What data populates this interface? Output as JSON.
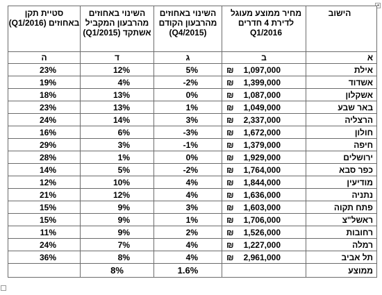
{
  "headers": {
    "rate_q1_2016": "סטיית תקן באחוזים (Q1/2016)",
    "change_yoy": "השינוי באחוזים מהרבעון המקביל אשתקד (Q1/2015)",
    "change_qoq": "השינוי באחוזים מהרבעון הקודם (Q4/2015)",
    "price": "מחיר ממוצע מעוגל לדירת 4 חדרים Q1/2016",
    "city": "הישוב"
  },
  "letters": {
    "rate": "ה",
    "yoy": "ד",
    "qoq": "ג",
    "price": "ב",
    "city": "א"
  },
  "currency_symbol": "₪",
  "rows": [
    {
      "city": "אילת",
      "price": "1,097,000",
      "qoq": "5%",
      "yoy": "12%",
      "rate": "23%"
    },
    {
      "city": "אשדוד",
      "price": "1,399,000",
      "qoq": "-2%",
      "yoy": "4%",
      "rate": "19%"
    },
    {
      "city": "אשקלון",
      "price": "1,087,000",
      "qoq": "0%",
      "yoy": "13%",
      "rate": "18%"
    },
    {
      "city": "באר שבע",
      "price": "1,049,000",
      "qoq": "1%",
      "yoy": "13%",
      "rate": "23%"
    },
    {
      "city": "הרצליה",
      "price": "2,337,000",
      "qoq": "3%",
      "yoy": "14%",
      "rate": "24%"
    },
    {
      "city": "חולון",
      "price": "1,672,000",
      "qoq": "-3%",
      "yoy": "6%",
      "rate": "16%"
    },
    {
      "city": "חיפה",
      "price": "1,379,000",
      "qoq": "-1%",
      "yoy": "3%",
      "rate": "29%"
    },
    {
      "city": "ירושלים",
      "price": "1,929,000",
      "qoq": "0%",
      "yoy": "1%",
      "rate": "28%"
    },
    {
      "city": "כפר סבא",
      "price": "1,764,000",
      "qoq": "-2%",
      "yoy": "5%",
      "rate": "14%"
    },
    {
      "city": "מודיעין",
      "price": "1,844,000",
      "qoq": "4%",
      "yoy": "10%",
      "rate": "12%"
    },
    {
      "city": "נתניה",
      "price": "1,636,000",
      "qoq": "4%",
      "yoy": "12%",
      "rate": "21%"
    },
    {
      "city": "פתח תקוה",
      "price": "1,603,000",
      "qoq": "3%",
      "yoy": "9%",
      "rate": "15%"
    },
    {
      "city": "ראשל\"צ",
      "price": "1,706,000",
      "qoq": "1%",
      "yoy": "9%",
      "rate": "15%"
    },
    {
      "city": "רחובות",
      "price": "1,526,000",
      "qoq": "2%",
      "yoy": "9%",
      "rate": "11%"
    },
    {
      "city": "רמלה",
      "price": "1,227,000",
      "qoq": "4%",
      "yoy": "7%",
      "rate": "24%"
    },
    {
      "city": "תל אביב",
      "price": "2,961,000",
      "qoq": "4%",
      "yoy": "8%",
      "rate": "36%"
    }
  ],
  "footer": {
    "label": "ממוצע",
    "qoq": "1.6%",
    "yoy": "8%"
  }
}
